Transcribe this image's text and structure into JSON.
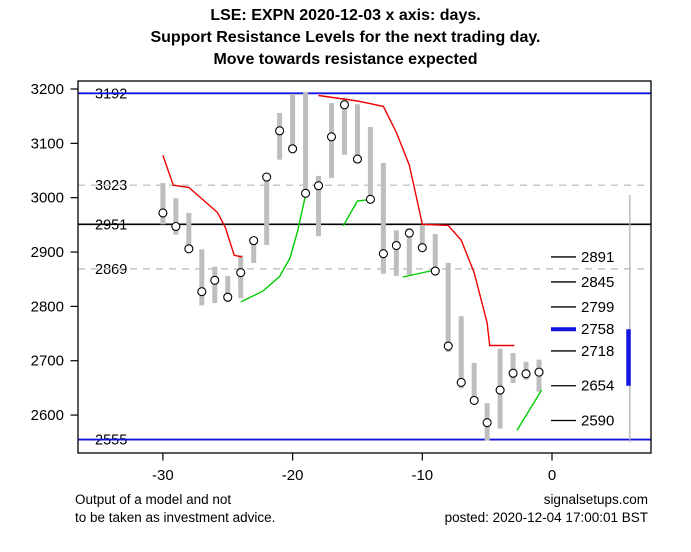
{
  "title": {
    "line1": "LSE: EXPN 2020-12-03 x axis: days.",
    "line2": "Support Resistance Levels for the next trading day.",
    "line3": "Move towards resistance expected"
  },
  "footer": {
    "left_line1": "Output of a model and not",
    "left_line2": "to be taken as investment advice.",
    "right_line1": "signalsetups.com",
    "right_line2": "posted: 2020-12-04 17:00:01 BST"
  },
  "colors": {
    "resistance_line": "#ee0000",
    "support_line": "#00cc00",
    "blue_level": "#1414e0",
    "black_level": "#000000",
    "dashed_level": "#c4c4c4",
    "bar": "#bebebe",
    "projection_range": "#b3b3b3",
    "target_zone": "#1414e0",
    "text": "#000000"
  },
  "chart_data": {
    "type": "bar",
    "variant": "high-low-close daily bars with close markers",
    "title": "LSE: EXPN 2020-12-03 x axis: days.",
    "xlabel": "days",
    "ylabel": "",
    "xlim": [
      -36.5,
      7.6
    ],
    "ylim": [
      2530,
      3215
    ],
    "x_axis_ticks": [
      -30,
      -20,
      -10,
      0
    ],
    "y_axis_ticks": [
      2600,
      2700,
      2800,
      2900,
      3000,
      3100,
      3200
    ],
    "grid": false,
    "bar_columns": [
      "day",
      "high",
      "low",
      "close"
    ],
    "bars": [
      [
        -30,
        3027,
        2951,
        2972
      ],
      [
        -29,
        2999,
        2932,
        2947
      ],
      [
        -28,
        2972,
        2901,
        2906
      ],
      [
        -27,
        2905,
        2802,
        2827
      ],
      [
        -26,
        2873,
        2806,
        2848
      ],
      [
        -25,
        2856,
        2808,
        2817
      ],
      [
        -24,
        2894,
        2815,
        2862
      ],
      [
        -23,
        2927,
        2880,
        2921
      ],
      [
        -22,
        3045,
        2913,
        3038
      ],
      [
        -21,
        3156,
        3070,
        3123
      ],
      [
        -20,
        3191,
        3086,
        3090
      ],
      [
        -19,
        3194,
        3005,
        3008
      ],
      [
        -18,
        3040,
        2929,
        3022
      ],
      [
        -17,
        3174,
        3036,
        3112
      ],
      [
        -16,
        3184,
        3079,
        3171
      ],
      [
        -15,
        3172,
        3067,
        3071
      ],
      [
        -14,
        3130,
        2996,
        2997
      ],
      [
        -13,
        3064,
        2860,
        2897
      ],
      [
        -12,
        2940,
        2856,
        2912
      ],
      [
        -11,
        2944,
        2858,
        2935
      ],
      [
        -10,
        2950,
        2904,
        2908
      ],
      [
        -9,
        2933,
        2862,
        2865
      ],
      [
        -8,
        2880,
        2716,
        2727
      ],
      [
        -7,
        2782,
        2649,
        2660
      ],
      [
        -6,
        2696,
        2625,
        2627
      ],
      [
        -5,
        2622,
        2553,
        2586
      ],
      [
        -4,
        2722,
        2575,
        2646
      ],
      [
        -3,
        2714,
        2659,
        2677
      ],
      [
        -2,
        2698,
        2665,
        2676
      ],
      [
        -1,
        2702,
        2643,
        2679
      ]
    ],
    "resistance_line_segments": [
      [
        [
          -30,
          3078
        ],
        [
          -29.2,
          3023
        ],
        [
          -28,
          3019
        ],
        [
          -26.9,
          2996
        ],
        [
          -25.8,
          2973
        ],
        [
          -25.2,
          2946
        ],
        [
          -24.7,
          2909
        ],
        [
          -24.5,
          2894
        ],
        [
          -23.9,
          2891
        ]
      ],
      [
        [
          -18,
          3188
        ],
        [
          -15,
          3178
        ],
        [
          -13,
          3168
        ],
        [
          -12,
          3120
        ],
        [
          -11,
          3060
        ],
        [
          -10.4,
          2995
        ],
        [
          -10,
          2951
        ],
        [
          -8,
          2949
        ],
        [
          -7,
          2922
        ],
        [
          -6,
          2862
        ],
        [
          -5,
          2770
        ],
        [
          -4.8,
          2728
        ],
        [
          -2.9,
          2728
        ]
      ]
    ],
    "support_line_segments": [
      [
        [
          -24,
          2808
        ],
        [
          -22.3,
          2828
        ],
        [
          -21,
          2855
        ],
        [
          -20.2,
          2889
        ],
        [
          -19.6,
          2940
        ],
        [
          -19,
          3005
        ]
      ],
      [
        [
          -16.1,
          2948
        ],
        [
          -15,
          2994
        ],
        [
          -13.9,
          2997
        ]
      ],
      [
        [
          -11.5,
          2854
        ],
        [
          -9.2,
          2866
        ]
      ],
      [
        [
          -2.7,
          2572
        ],
        [
          -0.8,
          2646
        ]
      ]
    ],
    "horizontal_levels": [
      {
        "value": 3192,
        "label": "3192",
        "color": "blue",
        "style": "solid"
      },
      {
        "value": 3023,
        "label": "3023",
        "color": "gray",
        "style": "dashed"
      },
      {
        "value": 2951,
        "label": "2951",
        "color": "black",
        "style": "solid"
      },
      {
        "value": 2869,
        "label": "2869",
        "color": "gray",
        "style": "dashed"
      },
      {
        "value": 2555,
        "label": "2555",
        "color": "blue",
        "style": "solid"
      }
    ],
    "right_levels": [
      {
        "value": 2891,
        "label": "2891",
        "emphasis": false
      },
      {
        "value": 2845,
        "label": "2845",
        "emphasis": false
      },
      {
        "value": 2799,
        "label": "2799",
        "emphasis": false
      },
      {
        "value": 2758,
        "label": "2758",
        "emphasis": true
      },
      {
        "value": 2718,
        "label": "2718",
        "emphasis": false
      },
      {
        "value": 2654,
        "label": "2654",
        "emphasis": false
      },
      {
        "value": 2590,
        "label": "2590",
        "emphasis": false
      }
    ],
    "projection": {
      "range_day": 6.0,
      "range_top": 3005,
      "range_bottom": 2550,
      "target_zone_day": 5.9,
      "target_zone_top": 2758,
      "target_zone_bottom": 2654
    },
    "legend_position": "none"
  }
}
